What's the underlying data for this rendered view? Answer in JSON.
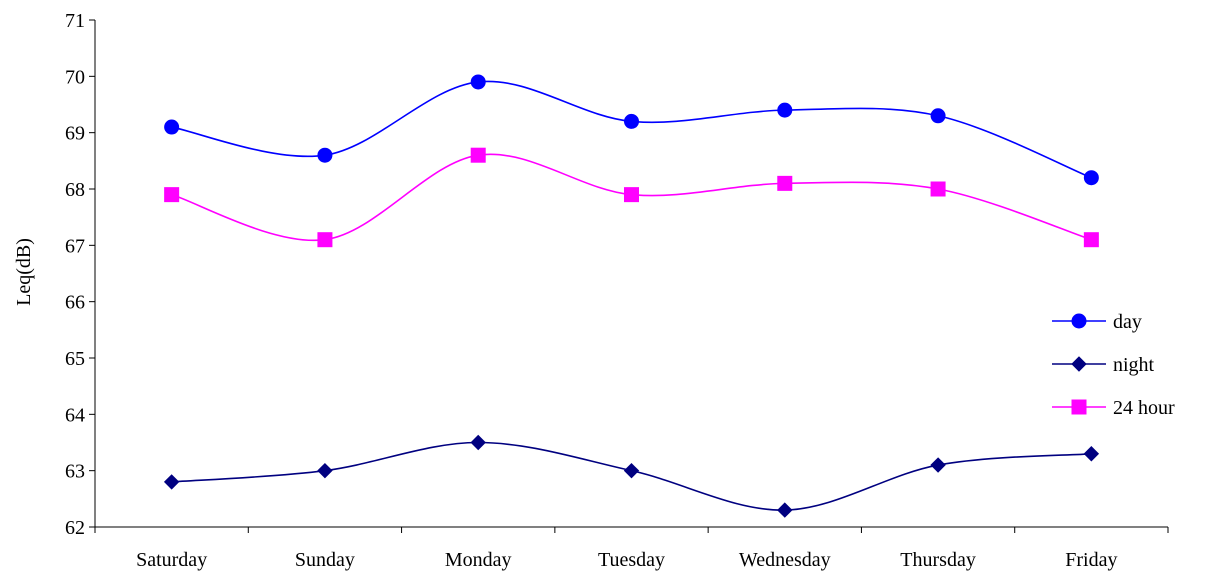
{
  "chart_data": {
    "type": "line",
    "title": "",
    "xlabel": "",
    "ylabel": "Leq(dB)",
    "ylim": [
      62,
      71
    ],
    "yticks": [
      62,
      63,
      64,
      65,
      66,
      67,
      68,
      69,
      70,
      71
    ],
    "categories": [
      "Saturday",
      "Sunday",
      "Monday",
      "Tuesday",
      "Wednesday",
      "Thursday",
      "Friday"
    ],
    "grid": false,
    "legend_position": "right",
    "series": [
      {
        "name": "day",
        "marker": "circle",
        "color": "#0000FF",
        "values": [
          69.1,
          68.6,
          69.9,
          69.2,
          69.4,
          69.3,
          68.2
        ]
      },
      {
        "name": "night",
        "marker": "diamond",
        "color": "#000080",
        "values": [
          62.8,
          63.0,
          63.5,
          63.0,
          62.3,
          63.1,
          63.3
        ]
      },
      {
        "name": "24 hour",
        "marker": "square",
        "color": "#FF00FF",
        "values": [
          67.9,
          67.1,
          68.6,
          67.9,
          68.1,
          68.0,
          67.1
        ]
      }
    ]
  }
}
